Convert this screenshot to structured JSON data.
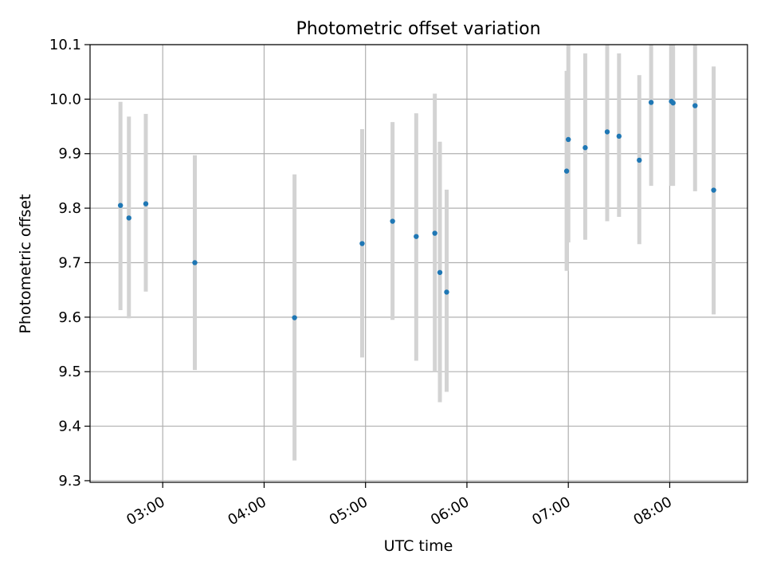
{
  "chart_data": {
    "type": "scatter",
    "title": "Photometric offset variation",
    "xlabel": "UTC time",
    "ylabel": "Photometric offset",
    "x_unit": "UTC time (HH:MM)",
    "xlim": [
      "02:17",
      "08:46"
    ],
    "ylim": [
      9.297,
      10.1
    ],
    "x_ticks": [
      "03:00",
      "04:00",
      "05:00",
      "06:00",
      "07:00",
      "08:00"
    ],
    "y_ticks": [
      "9.3",
      "9.4",
      "9.5",
      "9.6",
      "9.7",
      "9.8",
      "9.9",
      "10.0",
      "10.1"
    ],
    "grid": true,
    "points": [
      {
        "x": "02:35",
        "y": 9.805,
        "err_low": 9.613,
        "err_high": 9.995
      },
      {
        "x": "02:40",
        "y": 9.782,
        "err_low": 9.598,
        "err_high": 9.968
      },
      {
        "x": "02:50",
        "y": 9.808,
        "err_low": 9.647,
        "err_high": 9.973
      },
      {
        "x": "03:19",
        "y": 9.7,
        "err_low": 9.503,
        "err_high": 9.897
      },
      {
        "x": "04:18",
        "y": 9.599,
        "err_low": 9.337,
        "err_high": 9.862
      },
      {
        "x": "04:58",
        "y": 9.735,
        "err_low": 9.526,
        "err_high": 9.945
      },
      {
        "x": "05:16",
        "y": 9.776,
        "err_low": 9.595,
        "err_high": 9.958
      },
      {
        "x": "05:30",
        "y": 9.748,
        "err_low": 9.52,
        "err_high": 9.974
      },
      {
        "x": "05:41",
        "y": 9.754,
        "err_low": 9.5,
        "err_high": 10.01
      },
      {
        "x": "05:44",
        "y": 9.682,
        "err_low": 9.444,
        "err_high": 9.922
      },
      {
        "x": "05:48",
        "y": 9.646,
        "err_low": 9.463,
        "err_high": 9.834
      },
      {
        "x": "06:59",
        "y": 9.868,
        "err_low": 9.685,
        "err_high": 10.052
      },
      {
        "x": "07:00",
        "y": 9.926,
        "err_low": 9.737,
        "err_high": 10.12
      },
      {
        "x": "07:10",
        "y": 9.911,
        "err_low": 9.742,
        "err_high": 10.084
      },
      {
        "x": "07:23",
        "y": 9.94,
        "err_low": 9.776,
        "err_high": 10.106
      },
      {
        "x": "07:30",
        "y": 9.932,
        "err_low": 9.784,
        "err_high": 10.084
      },
      {
        "x": "07:42",
        "y": 9.888,
        "err_low": 9.734,
        "err_high": 10.044
      },
      {
        "x": "07:49",
        "y": 9.994,
        "err_low": 9.841,
        "err_high": 10.149
      },
      {
        "x": "08:01",
        "y": 9.996,
        "err_low": 9.841,
        "err_high": 10.155
      },
      {
        "x": "08:02",
        "y": 9.993,
        "err_low": 9.841,
        "err_high": 10.145
      },
      {
        "x": "08:15",
        "y": 9.988,
        "err_low": 9.831,
        "err_high": 10.148
      },
      {
        "x": "08:26",
        "y": 9.833,
        "err_low": 9.605,
        "err_high": 10.06
      }
    ],
    "colors": {
      "marker": "#1f77b4",
      "error_bar": "#d3d3d3",
      "grid": "#b0b0b0",
      "axes": "#000000"
    }
  }
}
